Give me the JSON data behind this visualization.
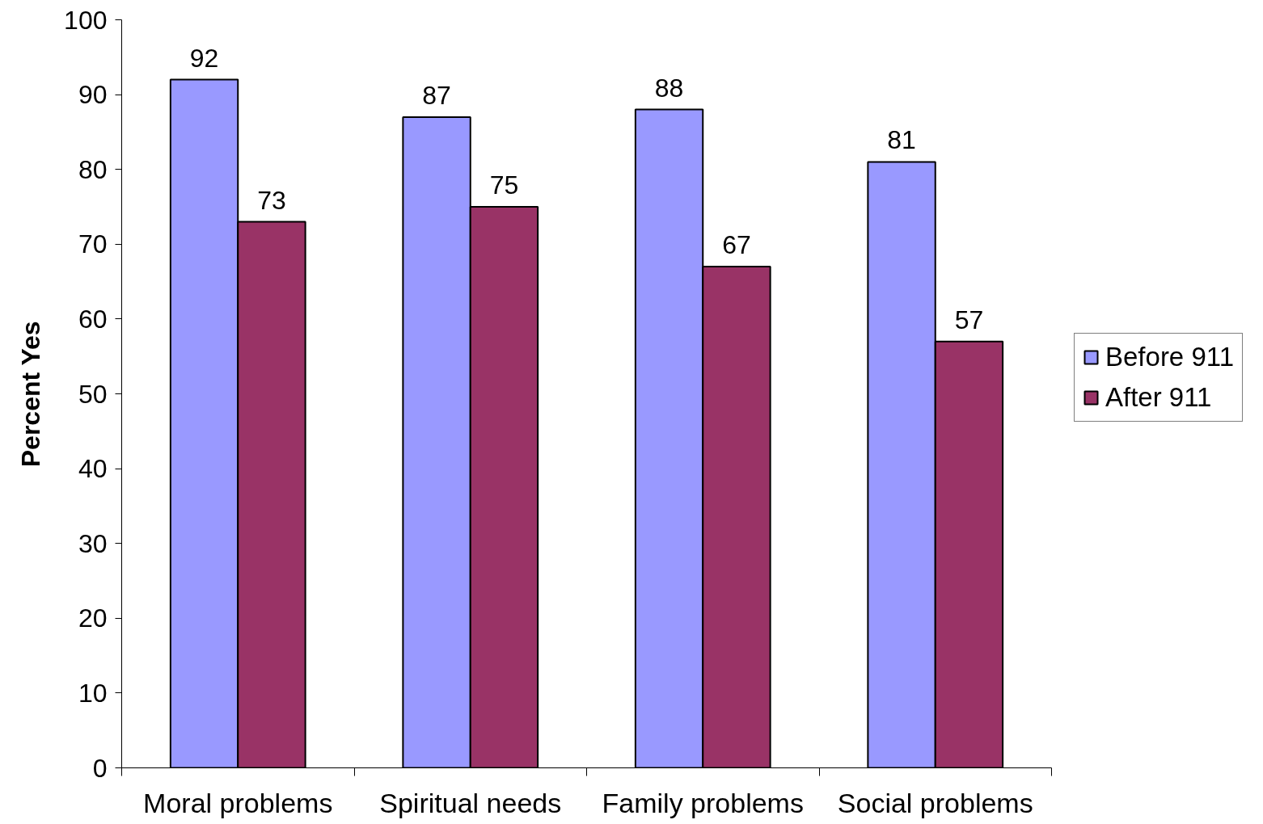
{
  "chart_data": {
    "type": "bar",
    "ylabel": "Percent Yes",
    "categories": [
      "Moral problems",
      "Spiritual needs",
      "Family problems",
      "Social problems"
    ],
    "series": [
      {
        "name": "Before 911",
        "color": "#9999ff",
        "values": [
          92,
          87,
          88,
          81
        ]
      },
      {
        "name": "After 911",
        "color": "#993366",
        "values": [
          73,
          75,
          67,
          57
        ]
      }
    ],
    "ylim": [
      0,
      100
    ],
    "yticks": [
      0,
      10,
      20,
      30,
      40,
      50,
      60,
      70,
      80,
      90,
      100
    ],
    "data_labels": true,
    "legend": "right",
    "grid": false
  }
}
